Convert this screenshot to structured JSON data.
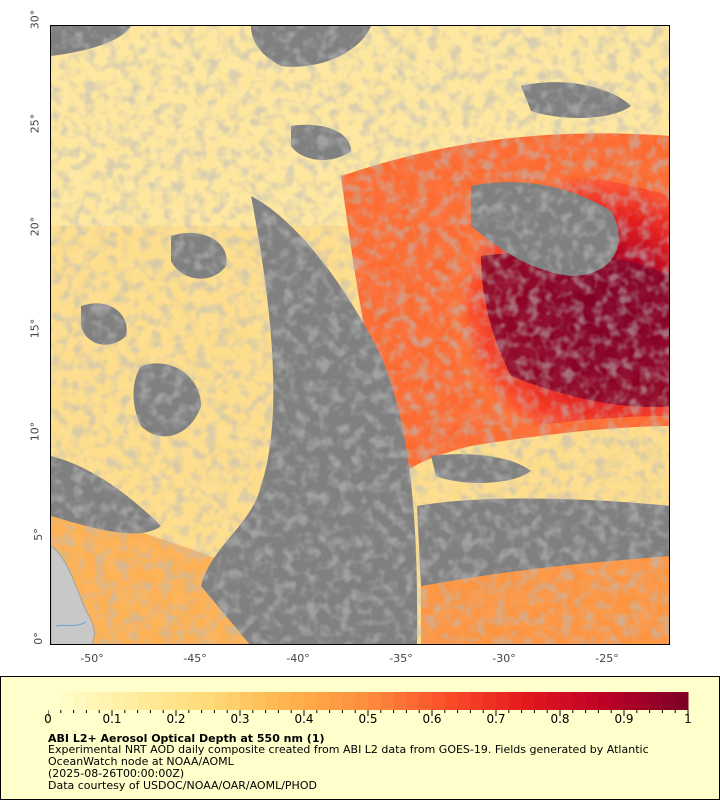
{
  "map": {
    "lat_ticks": [
      "30°",
      "25°",
      "20°",
      "15°",
      "10°",
      "5°",
      "0°"
    ],
    "lon_ticks": [
      "-50°",
      "-45°",
      "-40°",
      "-35°",
      "-30°",
      "-25°"
    ],
    "lat_range": [
      0,
      30
    ],
    "lon_range": [
      -52,
      -22
    ],
    "colors": {
      "missing": "#808080",
      "land": "#c8c8c8",
      "low": "#fff3c0",
      "mid": "#fd9a40",
      "high": "#7f0022"
    }
  },
  "colorbar": {
    "min": 0,
    "max": 1,
    "labels": [
      "0",
      "0.1",
      "0.2",
      "0.3",
      "0.4",
      "0.5",
      "0.6",
      "0.7",
      "0.8",
      "0.9",
      "1"
    ],
    "stops": [
      "#ffffcc",
      "#ffeda0",
      "#fed976",
      "#feb24c",
      "#fd8d3c",
      "#fc4e2a",
      "#e31a1c",
      "#bd0026",
      "#800026"
    ]
  },
  "legend": {
    "title": "ABI L2+ Aerosol Optical Depth at 550 nm (1)",
    "line1": "Experimental NRT AOD daily composite created from ABI L2 data from GOES-19. Fields generated by Atlantic",
    "line2": "OceanWatch node at NOAA/AOML",
    "line3": "(2025-08-26T00:00:00Z)",
    "line4": "Data courtesy of USDOC/NOAA/OAR/AOML/PHOD"
  }
}
